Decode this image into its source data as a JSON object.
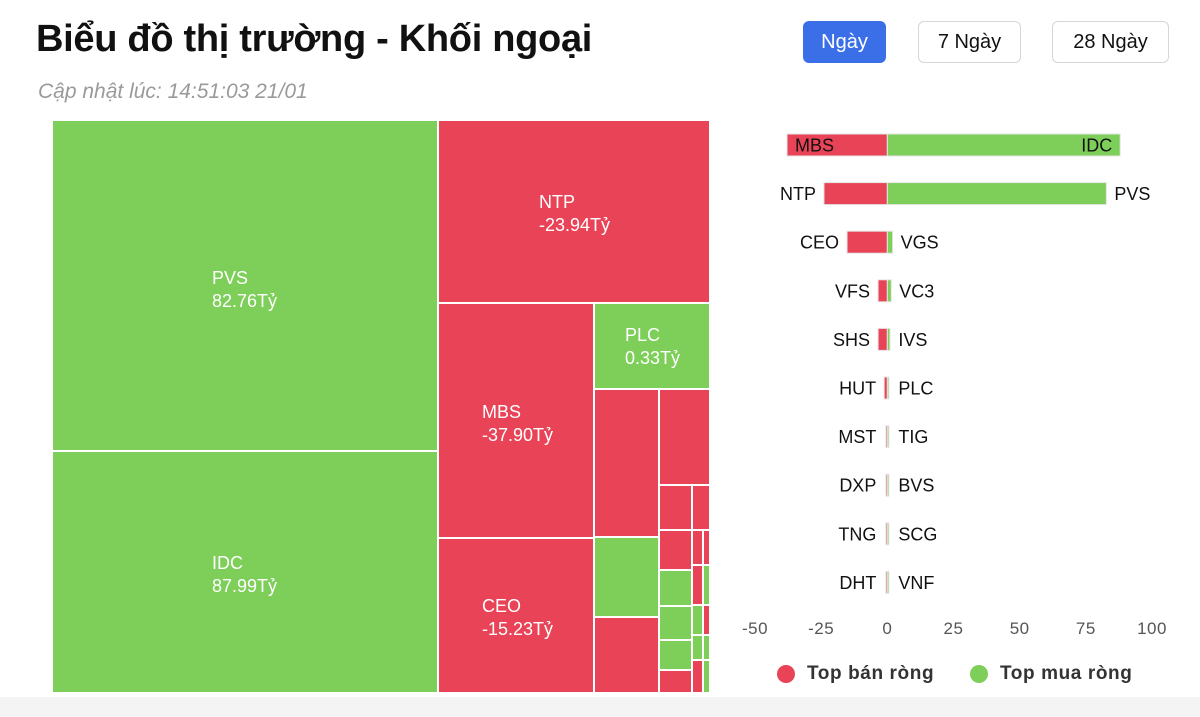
{
  "header": {
    "title": "Biểu đồ thị trường - Khối ngoại",
    "updated": "Cập nhật lúc: 14:51:03 21/01"
  },
  "periods": [
    {
      "label": "Ngày",
      "active": true
    },
    {
      "label": "7 Ngày",
      "active": false
    },
    {
      "label": "28 Ngày",
      "active": false
    }
  ],
  "colors": {
    "buy": "#7ecf59",
    "sell": "#e84356",
    "active_button": "#3b6fe8"
  },
  "legend": {
    "sell": "Top bán ròng",
    "buy": "Top mua ròng"
  },
  "chart_data": [
    {
      "type": "treemap",
      "tiles": [
        {
          "ticker": "PVS",
          "label": "82.76Tỷ",
          "value": 82.76,
          "side": "buy"
        },
        {
          "ticker": "IDC",
          "label": "87.99Tỷ",
          "value": 87.99,
          "side": "buy"
        },
        {
          "ticker": "NTP",
          "label": "-23.94Tỷ",
          "value": -23.94,
          "side": "sell"
        },
        {
          "ticker": "MBS",
          "label": "-37.90Tỷ",
          "value": -37.9,
          "side": "sell"
        },
        {
          "ticker": "CEO",
          "label": "-15.23Tỷ",
          "value": -15.23,
          "side": "sell"
        },
        {
          "ticker": "PLC",
          "label": "0.33Tỷ",
          "value": 0.33,
          "side": "buy"
        }
      ]
    },
    {
      "type": "bar",
      "orientation": "horizontal-diverging",
      "xlim": [
        -50,
        100
      ],
      "xticks": [
        -50,
        -25,
        0,
        25,
        50,
        75,
        100
      ],
      "rows": [
        {
          "sell": "MBS",
          "sell_value": -37.9,
          "buy": "IDC",
          "buy_value": 87.99,
          "labels_inside": true
        },
        {
          "sell": "NTP",
          "sell_value": -23.94,
          "buy": "PVS",
          "buy_value": 82.76
        },
        {
          "sell": "CEO",
          "sell_value": -15.23,
          "buy": "VGS",
          "buy_value": 2
        },
        {
          "sell": "VFS",
          "sell_value": -3.5,
          "buy": "VC3",
          "buy_value": 1.5
        },
        {
          "sell": "SHS",
          "sell_value": -3.5,
          "buy": "IVS",
          "buy_value": 1
        },
        {
          "sell": "HUT",
          "sell_value": -1.2,
          "buy": "PLC",
          "buy_value": 0.33
        },
        {
          "sell": "MST",
          "sell_value": -0.4,
          "buy": "TIG",
          "buy_value": 0.3
        },
        {
          "sell": "DXP",
          "sell_value": -0.3,
          "buy": "BVS",
          "buy_value": 0.2
        },
        {
          "sell": "TNG",
          "sell_value": -0.2,
          "buy": "SCG",
          "buy_value": 0.1
        },
        {
          "sell": "DHT",
          "sell_value": -0.1,
          "buy": "VNF",
          "buy_value": 0.05
        }
      ]
    }
  ]
}
